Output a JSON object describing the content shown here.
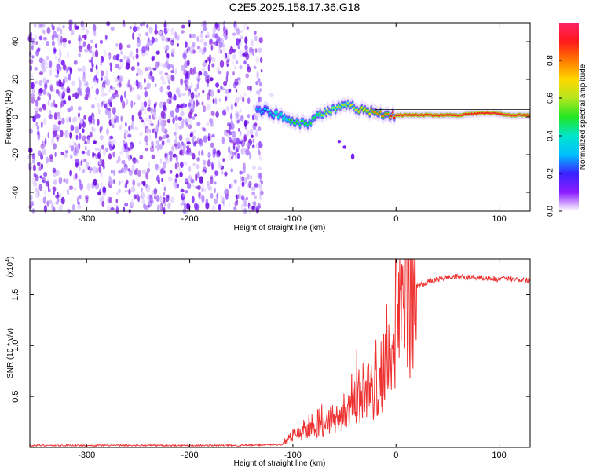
{
  "title": "C2E5.2025.158.17.36.G18",
  "chart_data": [
    {
      "type": "heatmap",
      "xlabel": "Height of straight line (km)",
      "ylabel": "Frequency (Hz)",
      "xlim": [
        -355,
        130
      ],
      "ylim": [
        -50,
        50
      ],
      "x_ticks": [
        -300,
        -200,
        -100,
        0,
        100
      ],
      "y_ticks": [
        -40,
        -20,
        0,
        20,
        40
      ],
      "x_tick_labels": [
        "-300",
        "-200",
        "-100",
        "0",
        "100"
      ],
      "y_tick_labels": [
        "-40",
        "-20",
        "0",
        "20",
        "40"
      ],
      "noise_region_km": [
        -355,
        -130
      ],
      "signal_ridge": {
        "x": [
          -135,
          -125,
          -115,
          -105,
          -95,
          -85,
          -75,
          -65,
          -55,
          -45,
          -35,
          -25,
          -15,
          -5,
          5,
          20,
          40,
          60,
          80,
          95,
          110,
          130
        ],
        "freq": [
          4,
          3,
          1,
          -1,
          -3,
          -3,
          1,
          3,
          5,
          6,
          4,
          3,
          2,
          1,
          1,
          1,
          1,
          1,
          2,
          2,
          1,
          1
        ],
        "amplitude": [
          0.3,
          0.35,
          0.4,
          0.45,
          0.5,
          0.5,
          0.55,
          0.6,
          0.6,
          0.65,
          0.7,
          0.75,
          0.8,
          0.85,
          0.9,
          0.95,
          0.95,
          0.95,
          0.95,
          0.95,
          0.95,
          0.95
        ]
      },
      "secondary_feature": {
        "x": [
          -55,
          -50,
          -42
        ],
        "freq": [
          -13,
          -16,
          -21
        ]
      },
      "colorbar": {
        "label": "Normalized spectral amplitude",
        "range": [
          0,
          1
        ],
        "ticks": [
          0.0,
          0.2,
          0.4,
          0.6,
          0.8
        ],
        "tick_labels": [
          "0.0",
          "0.2",
          "0.4",
          "0.6",
          "0.8"
        ],
        "colormap": [
          "#ffffff",
          "#8b1cff",
          "#3a22ff",
          "#00bfff",
          "#00e5cc",
          "#22e622",
          "#b4e61e",
          "#ffd700",
          "#ff7a00",
          "#ff1a1a",
          "#ff2266"
        ]
      }
    },
    {
      "type": "line",
      "xlabel": "Height of straight line (km)",
      "ylabel": "SNR (10 * v/v)",
      "multiplier_label": "(x10",
      "multiplier_exp": "4",
      "xlim": [
        -355,
        130
      ],
      "ylim": [
        0,
        1.85
      ],
      "x_ticks": [
        -300,
        -200,
        -100,
        0,
        100
      ],
      "y_ticks": [
        0.5,
        1.0,
        1.5
      ],
      "x_tick_labels": [
        "-300",
        "-200",
        "-100",
        "0",
        "100"
      ],
      "y_tick_labels": [
        "0.5",
        "1.0",
        "1.5"
      ],
      "color": "#ee3333",
      "series": [
        {
          "x": [
            -355,
            -300,
            -250,
            -200,
            -150,
            -110,
            -100,
            -90,
            -80,
            -70,
            -60,
            -50,
            -40,
            -30,
            -20,
            -15,
            -10,
            -5,
            0,
            5,
            10,
            15,
            20,
            30,
            40,
            50,
            60,
            70,
            80,
            90,
            100,
            110,
            120,
            130
          ],
          "values": [
            0.02,
            0.02,
            0.02,
            0.02,
            0.02,
            0.03,
            0.12,
            0.15,
            0.16,
            0.2,
            0.25,
            0.35,
            0.5,
            0.55,
            0.6,
            0.7,
            0.85,
            1.0,
            1.2,
            1.35,
            1.45,
            1.52,
            1.58,
            1.62,
            1.65,
            1.67,
            1.68,
            1.67,
            1.67,
            1.66,
            1.65,
            1.66,
            1.65,
            1.64
          ]
        }
      ]
    }
  ]
}
